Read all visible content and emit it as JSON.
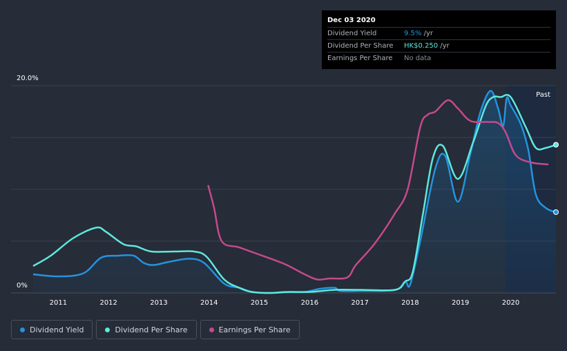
{
  "chart_data": {
    "type": "line",
    "title": "",
    "xlabel": "",
    "ylabel": "",
    "ylim": [
      0,
      20
    ],
    "y_tick_labels": [
      "20.0%",
      "0%"
    ],
    "x_tick_labels": [
      "2011",
      "2012",
      "2013",
      "2014",
      "2015",
      "2016",
      "2017",
      "2018",
      "2019",
      "2020"
    ],
    "x_range": [
      2010.5,
      2020.9
    ],
    "past_label": "Past",
    "series": [
      {
        "name": "Dividend Yield",
        "color": "#2394df",
        "x": [
          2010.5,
          2011.0,
          2011.5,
          2011.85,
          2012.2,
          2012.5,
          2012.7,
          2012.9,
          2013.2,
          2013.6,
          2013.9,
          2014.3,
          2014.6,
          2014.85,
          2015.2,
          2015.5,
          2015.9,
          2016.2,
          2016.5,
          2016.6,
          2017.0,
          2017.7,
          2017.9,
          2018.0,
          2018.2,
          2018.5,
          2018.7,
          2018.95,
          2019.2,
          2019.4,
          2019.6,
          2019.75,
          2019.85,
          2019.92,
          2020.0,
          2020.2,
          2020.35,
          2020.5,
          2020.7,
          2020.9
        ],
        "values": [
          1.8,
          1.6,
          1.9,
          3.4,
          3.6,
          3.6,
          2.9,
          2.7,
          3.0,
          3.3,
          2.9,
          0.9,
          0.5,
          0.1,
          0.0,
          0.1,
          0.1,
          0.4,
          0.5,
          0.2,
          0.2,
          0.3,
          1.1,
          0.8,
          5.0,
          12.0,
          13.2,
          8.8,
          13.5,
          17.5,
          19.5,
          17.8,
          16.1,
          18.8,
          18.1,
          16.3,
          13.8,
          9.5,
          8.2,
          7.8
        ]
      },
      {
        "name": "Dividend Per Share",
        "color": "#5ee8dc",
        "x": [
          2010.5,
          2010.85,
          2011.3,
          2011.75,
          2011.95,
          2012.3,
          2012.55,
          2012.85,
          2013.3,
          2013.7,
          2013.95,
          2014.3,
          2014.6,
          2014.85,
          2015.2,
          2015.6,
          2016.0,
          2016.5,
          2017.0,
          2017.7,
          2017.9,
          2018.05,
          2018.25,
          2018.45,
          2018.65,
          2018.95,
          2019.25,
          2019.5,
          2019.65,
          2019.8,
          2020.0,
          2020.3,
          2020.5,
          2020.7,
          2020.9
        ],
        "values": [
          2.6,
          3.6,
          5.3,
          6.3,
          5.9,
          4.7,
          4.5,
          4.0,
          4.0,
          4.0,
          3.5,
          1.3,
          0.5,
          0.1,
          0.0,
          0.1,
          0.1,
          0.3,
          0.3,
          0.3,
          1.1,
          2.0,
          7.5,
          13.0,
          14.2,
          11.0,
          14.5,
          18.0,
          18.9,
          18.9,
          18.9,
          16.0,
          14.0,
          14.0,
          14.3
        ]
      },
      {
        "name": "Earnings Per Share",
        "color": "#c44a8b",
        "x": [
          2013.98,
          2014.1,
          2014.25,
          2014.6,
          2015.0,
          2015.5,
          2015.9,
          2016.15,
          2016.4,
          2016.75,
          2016.92,
          2017.3,
          2017.7,
          2017.95,
          2018.2,
          2018.35,
          2018.5,
          2018.75,
          2018.95,
          2019.2,
          2019.55,
          2019.75,
          2019.9,
          2020.1,
          2020.4,
          2020.75
        ],
        "values": [
          10.4,
          8.2,
          5.0,
          4.4,
          3.7,
          2.8,
          1.8,
          1.3,
          1.4,
          1.5,
          2.7,
          4.8,
          7.7,
          10.0,
          16.0,
          17.2,
          17.5,
          18.6,
          17.8,
          16.6,
          16.5,
          16.4,
          15.5,
          13.3,
          12.6,
          12.4
        ]
      }
    ]
  },
  "tooltip": {
    "date": "Dec 03 2020",
    "rows": [
      {
        "label": "Dividend Yield",
        "value": "9.5%",
        "unit": " /yr",
        "color": "#2394df"
      },
      {
        "label": "Dividend Per Share",
        "value": "HK$0.250",
        "unit": " /yr",
        "color": "#5ee8dc"
      },
      {
        "label": "Earnings Per Share",
        "value": "No data",
        "unit": "",
        "color": ""
      }
    ]
  },
  "legend": [
    {
      "label": "Dividend Yield",
      "color": "#2394df"
    },
    {
      "label": "Dividend Per Share",
      "color": "#5ee8dc"
    },
    {
      "label": "Earnings Per Share",
      "color": "#c44a8b"
    }
  ]
}
